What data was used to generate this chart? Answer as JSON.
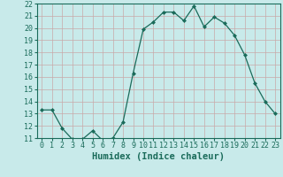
{
  "x": [
    0,
    1,
    2,
    3,
    4,
    5,
    6,
    7,
    8,
    9,
    10,
    11,
    12,
    13,
    14,
    15,
    16,
    17,
    18,
    19,
    20,
    21,
    22,
    23
  ],
  "y": [
    13.3,
    13.3,
    11.8,
    10.9,
    10.9,
    11.6,
    10.8,
    11.0,
    12.3,
    16.3,
    19.9,
    20.5,
    21.3,
    21.3,
    20.6,
    21.8,
    20.1,
    20.9,
    20.4,
    19.4,
    17.8,
    15.5,
    14.0,
    13.0
  ],
  "line_color": "#1a6b5a",
  "marker": "D",
  "marker_size": 2.0,
  "bg_color": "#c8eaea",
  "grid_color": "#b0d0d0",
  "xlabel": "Humidex (Indice chaleur)",
  "ylim": [
    11,
    22
  ],
  "xlim": [
    -0.5,
    23.5
  ],
  "yticks": [
    11,
    12,
    13,
    14,
    15,
    16,
    17,
    18,
    19,
    20,
    21,
    22
  ],
  "xticks": [
    0,
    1,
    2,
    3,
    4,
    5,
    6,
    7,
    8,
    9,
    10,
    11,
    12,
    13,
    14,
    15,
    16,
    17,
    18,
    19,
    20,
    21,
    22,
    23
  ],
  "tick_label_fontsize": 6.0,
  "xlabel_fontsize": 7.5
}
